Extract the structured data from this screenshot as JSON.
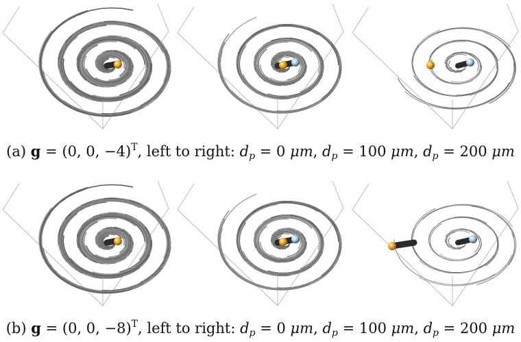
{
  "figure": {
    "rows": [
      {
        "id": "a",
        "caption": {
          "label": "(a)",
          "vector_symbol": "g",
          "equals": "=",
          "vector_value": "(0, 0, −4)",
          "transpose": "T",
          "suffix": ", left to right:",
          "items": [
            {
              "var": "d",
              "sub": "p",
              "eq": "= 0",
              "unit": "μm",
              "sep": ","
            },
            {
              "var": "d",
              "sub": "p",
              "eq": "= 100",
              "unit": "μm",
              "sep": ","
            },
            {
              "var": "d",
              "sub": "p",
              "eq": "= 200",
              "unit": "μm",
              "sep": ""
            }
          ]
        },
        "panels": [
          {
            "id": "a1",
            "diameter_um": 0,
            "particle": "single-gold",
            "streamline_density": "dense"
          },
          {
            "id": "a2",
            "diameter_um": 100,
            "particle": "gold-and-silver",
            "streamline_density": "medium"
          },
          {
            "id": "a3",
            "diameter_um": 200,
            "particle": "separated",
            "streamline_density": "sparse"
          }
        ]
      },
      {
        "id": "b",
        "caption": {
          "label": "(b)",
          "vector_symbol": "g",
          "equals": "=",
          "vector_value": "(0, 0, −8)",
          "transpose": "T",
          "suffix": ", left to right:",
          "items": [
            {
              "var": "d",
              "sub": "p",
              "eq": "= 0",
              "unit": "μm",
              "sep": ","
            },
            {
              "var": "d",
              "sub": "p",
              "eq": "= 100",
              "unit": "μm",
              "sep": ","
            },
            {
              "var": "d",
              "sub": "p",
              "eq": "= 200",
              "unit": "μm",
              "sep": ""
            }
          ]
        },
        "panels": [
          {
            "id": "b1",
            "diameter_um": 0,
            "particle": "single-gold",
            "streamline_density": "dense"
          },
          {
            "id": "b2",
            "diameter_um": 100,
            "particle": "gold-and-silver",
            "streamline_density": "medium"
          },
          {
            "id": "b3",
            "diameter_um": 200,
            "particle": "separated-wide",
            "streamline_density": "sparse"
          }
        ]
      }
    ],
    "colors": {
      "streamline": "#8a8a8a",
      "box_edge": "#b5b5b5",
      "gold": "#e8a21a",
      "silver": "#a9c4dc",
      "rod": "#2a2a2a"
    }
  }
}
